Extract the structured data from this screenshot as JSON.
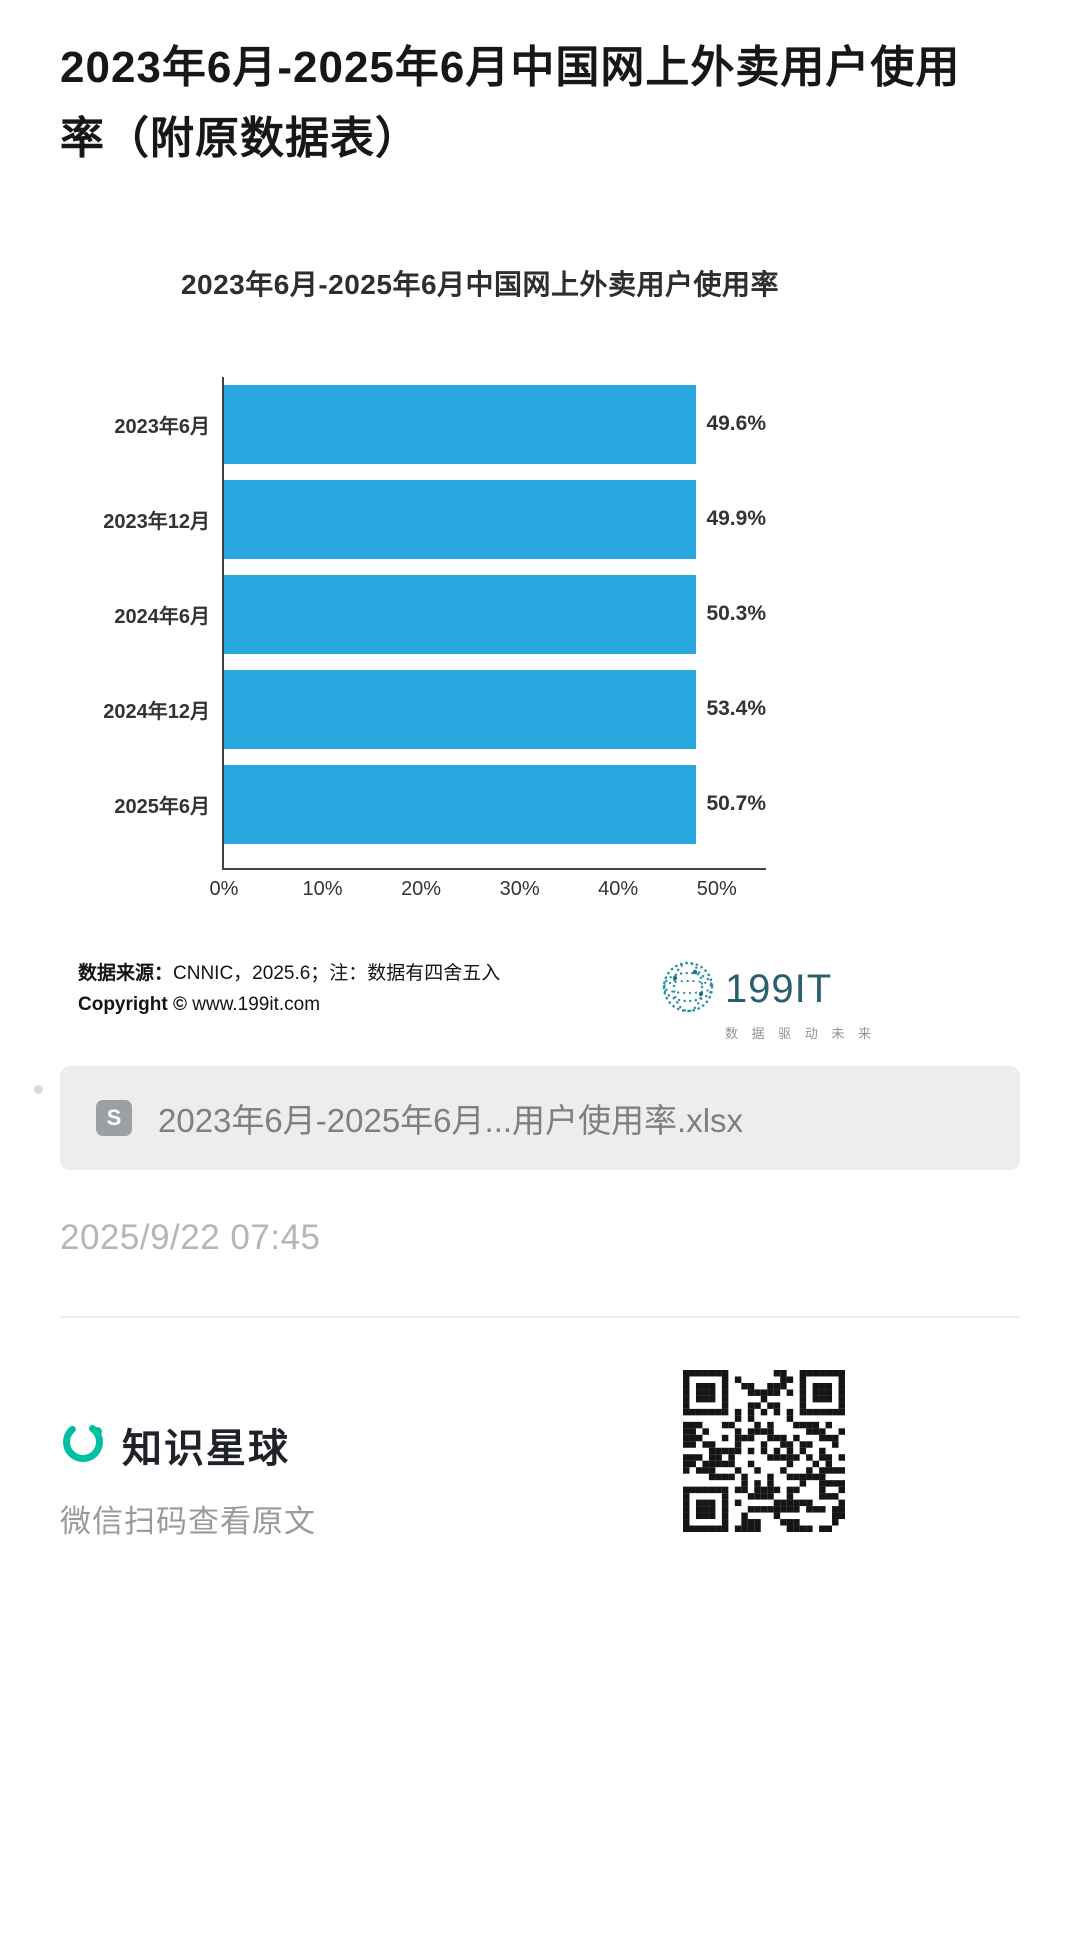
{
  "page": {
    "title": "2023年6月-2025年6月中国网上外卖用户使用率（附原数据表）"
  },
  "chart_data": {
    "type": "bar",
    "orientation": "horizontal",
    "title": "2023年6月-2025年6月中国网上外卖用户使用率",
    "categories": [
      "2023年6月",
      "2023年12月",
      "2024年6月",
      "2024年12月",
      "2025年6月"
    ],
    "values": [
      49.6,
      49.9,
      50.3,
      53.4,
      50.7
    ],
    "value_labels": [
      "49.6%",
      "49.9%",
      "50.3%",
      "53.4%",
      "50.7%"
    ],
    "x_ticks": [
      "0%",
      "10%",
      "20%",
      "30%",
      "40%",
      "50%"
    ],
    "x_tick_values": [
      0,
      10,
      20,
      30,
      40,
      50
    ],
    "xlim": [
      0,
      55
    ],
    "grid": false,
    "legend": "none",
    "bar_color": "#29a8e0"
  },
  "source": {
    "label_bold": "数据来源：",
    "label_rest": "CNNIC，2025.6；注：数据有四舍五入",
    "copyright_bold": "Copyright ©",
    "copyright_rest": " www.199it.com"
  },
  "logo199it": {
    "text": "199IT",
    "tagline": "数 据 驱 动 未 来"
  },
  "attachment": {
    "icon_label": "S",
    "filename": "2023年6月-2025年6月...用户使用率.xlsx"
  },
  "meta": {
    "timestamp": "2025/9/22 07:45"
  },
  "footer": {
    "brand": "知识星球",
    "caption": "微信扫码查看原文"
  },
  "icons": {
    "globe": "globe-icon",
    "brand_ring": "planet-ring-icon",
    "qr": "qr-code",
    "attachment": "spreadsheet-file-icon"
  },
  "colors": {
    "bar": "#29a8e0",
    "brand_teal": "#00c0a2",
    "logo_teal": "#2a8fa3",
    "axis": "#424242"
  }
}
